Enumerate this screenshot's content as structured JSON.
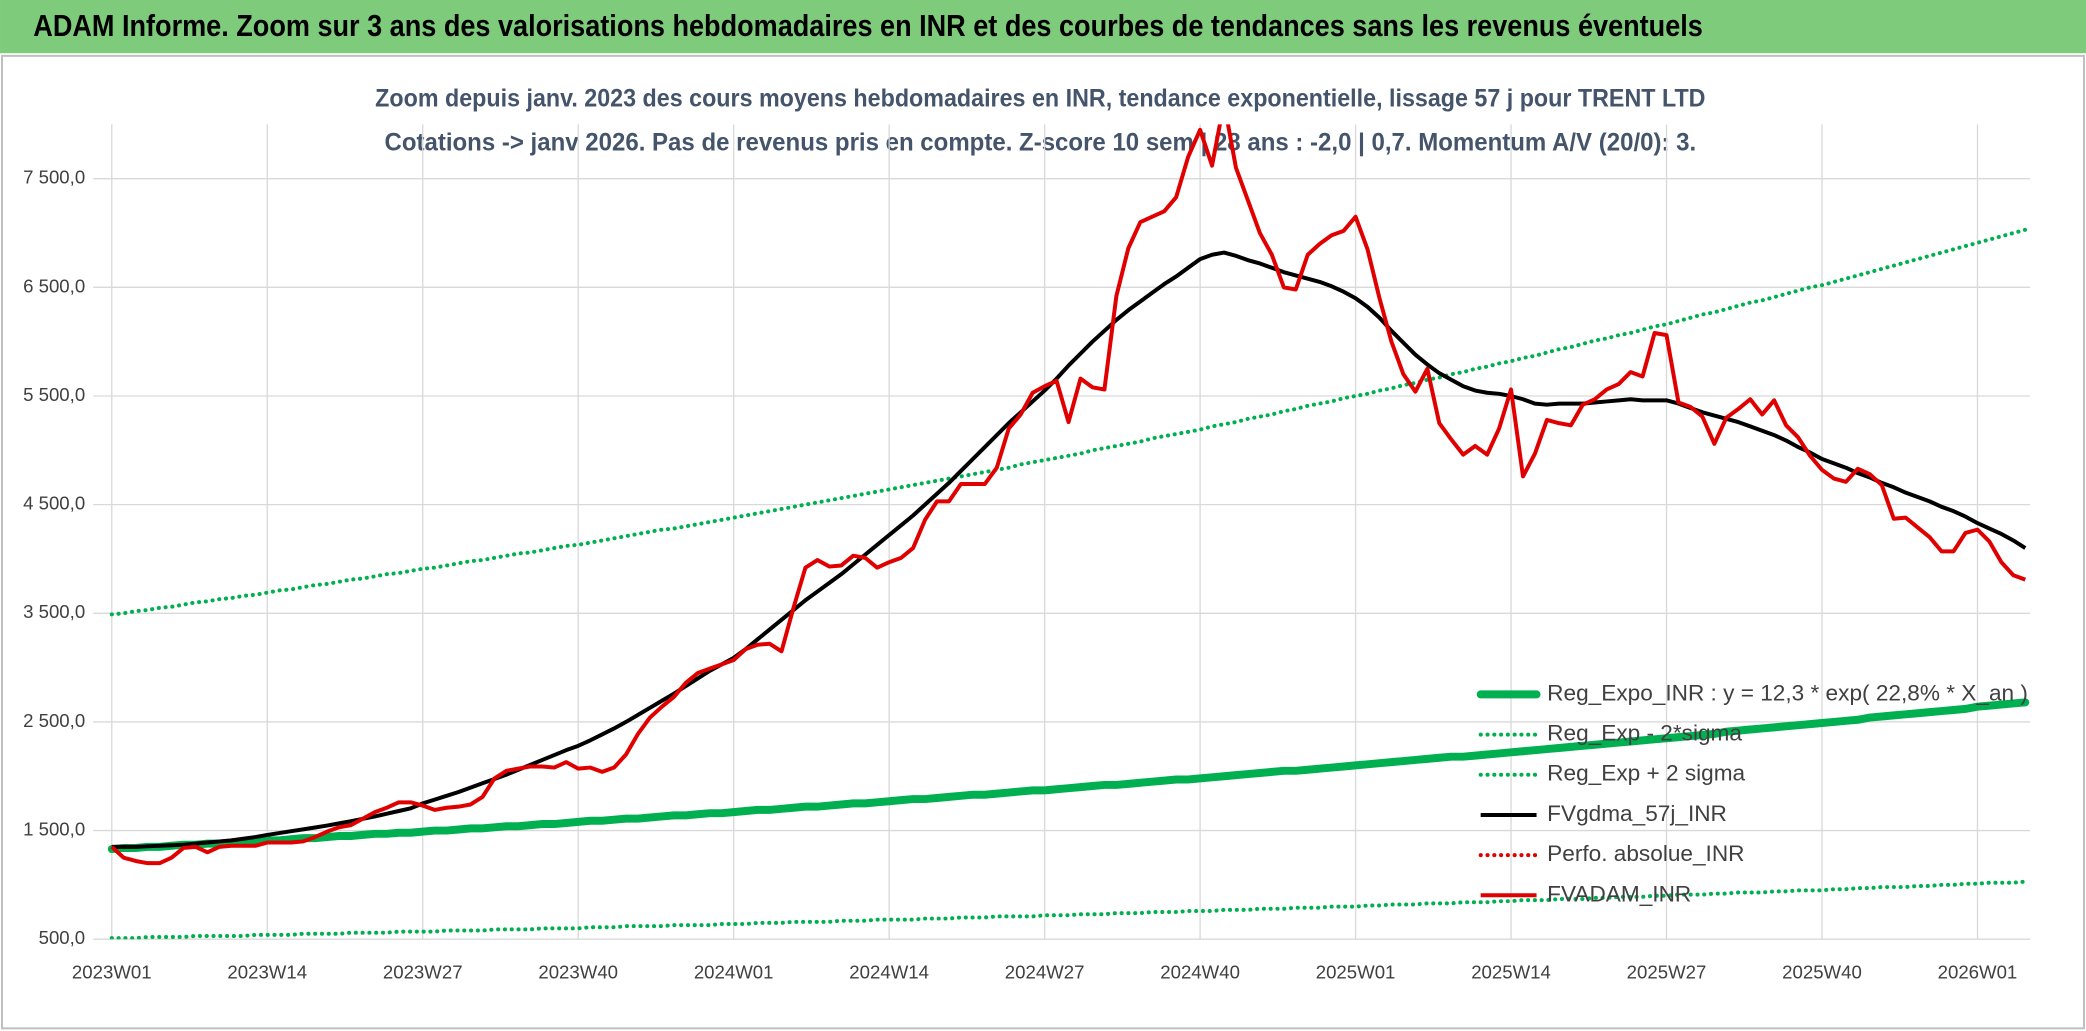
{
  "header": {
    "title": "ADAM Informe. Zoom sur 3 ans des valorisations hebdomadaires en INR et des courbes de tendances sans les revenus éventuels"
  },
  "chart_data": {
    "type": "line",
    "title": "Zoom depuis janv. 2023 des cours moyens hebdomadaires en INR, tendance exponentielle, lissage 57 j pour TRENT LTD",
    "subtitle": "Cotations -> janv 2026. Pas de revenus pris en compte. Z-score 10 sem | 28 ans : -2,0 | 0,7. Momentum A/V (20/0): 3.",
    "categories": [
      "2023W01",
      null,
      null,
      null,
      null,
      null,
      null,
      null,
      null,
      null,
      null,
      null,
      null,
      "2023W14",
      null,
      null,
      null,
      null,
      null,
      null,
      null,
      null,
      null,
      null,
      null,
      null,
      "2023W27",
      null,
      null,
      null,
      null,
      null,
      null,
      null,
      null,
      null,
      null,
      null,
      null,
      "2023W40",
      null,
      null,
      null,
      null,
      null,
      null,
      null,
      null,
      null,
      null,
      null,
      null,
      "2024W01",
      null,
      null,
      null,
      null,
      null,
      null,
      null,
      null,
      null,
      null,
      null,
      null,
      "2024W14",
      null,
      null,
      null,
      null,
      null,
      null,
      null,
      null,
      null,
      null,
      null,
      null,
      "2024W27",
      null,
      null,
      null,
      null,
      null,
      null,
      null,
      null,
      null,
      null,
      null,
      null,
      "2024W40",
      null,
      null,
      null,
      null,
      null,
      null,
      null,
      null,
      null,
      null,
      null,
      null,
      "2025W01",
      null,
      null,
      null,
      null,
      null,
      null,
      null,
      null,
      null,
      null,
      null,
      null,
      "2025W14",
      null,
      null,
      null,
      null,
      null,
      null,
      null,
      null,
      null,
      null,
      null,
      null,
      "2025W27",
      null,
      null,
      null,
      null,
      null,
      null,
      null,
      null,
      null,
      null,
      null,
      null,
      "2025W40",
      null,
      null,
      null,
      null,
      null,
      null,
      null,
      null,
      null,
      null,
      null,
      null,
      "2026W01",
      null,
      null,
      null,
      null
    ],
    "series": [
      {
        "name": "Reg_Expo_INR : y = 12,3 * exp( 22,8% * X_an )",
        "color": "#00b050",
        "style": "thick",
        "values": [
          1330,
          1340,
          1340,
          1350,
          1350,
          1360,
          1370,
          1370,
          1380,
          1380,
          1390,
          1400,
          1400,
          1410,
          1410,
          1420,
          1430,
          1430,
          1440,
          1450,
          1450,
          1460,
          1470,
          1470,
          1480,
          1480,
          1490,
          1500,
          1500,
          1510,
          1520,
          1520,
          1530,
          1540,
          1540,
          1550,
          1560,
          1560,
          1570,
          1580,
          1590,
          1590,
          1600,
          1610,
          1610,
          1620,
          1630,
          1640,
          1640,
          1650,
          1660,
          1660,
          1670,
          1680,
          1690,
          1690,
          1700,
          1710,
          1720,
          1720,
          1730,
          1740,
          1750,
          1750,
          1760,
          1770,
          1780,
          1790,
          1790,
          1800,
          1810,
          1820,
          1830,
          1830,
          1840,
          1850,
          1860,
          1870,
          1870,
          1880,
          1890,
          1900,
          1910,
          1920,
          1920,
          1930,
          1940,
          1950,
          1960,
          1970,
          1970,
          1980,
          1990,
          2000,
          2010,
          2020,
          2030,
          2040,
          2050,
          2050,
          2060,
          2070,
          2080,
          2090,
          2100,
          2110,
          2120,
          2130,
          2140,
          2150,
          2160,
          2170,
          2180,
          2180,
          2190,
          2200,
          2210,
          2220,
          2230,
          2240,
          2250,
          2260,
          2270,
          2280,
          2290,
          2300,
          2310,
          2320,
          2330,
          2340,
          2350,
          2360,
          2370,
          2380,
          2390,
          2410,
          2420,
          2430,
          2440,
          2450,
          2460,
          2470,
          2480,
          2490,
          2500,
          2510,
          2520,
          2540,
          2550,
          2560,
          2570,
          2580,
          2590,
          2600,
          2610,
          2620,
          2640,
          2650,
          2660,
          2670,
          2680
        ]
      },
      {
        "name": "Reg_Exp - 2*sigma",
        "color": "#00b050",
        "style": "dotted",
        "values": [
          510,
          510,
          510,
          520,
          520,
          520,
          520,
          530,
          530,
          530,
          530,
          530,
          540,
          540,
          540,
          540,
          550,
          550,
          550,
          550,
          560,
          560,
          560,
          560,
          570,
          570,
          570,
          570,
          580,
          580,
          580,
          580,
          590,
          590,
          590,
          590,
          600,
          600,
          600,
          600,
          610,
          610,
          610,
          620,
          620,
          620,
          620,
          630,
          630,
          630,
          630,
          640,
          640,
          640,
          650,
          650,
          650,
          660,
          660,
          660,
          660,
          670,
          670,
          670,
          680,
          680,
          680,
          680,
          690,
          690,
          690,
          700,
          700,
          700,
          710,
          710,
          710,
          710,
          720,
          720,
          720,
          730,
          730,
          730,
          740,
          740,
          740,
          750,
          750,
          750,
          760,
          760,
          760,
          770,
          770,
          770,
          780,
          780,
          780,
          790,
          790,
          790,
          800,
          800,
          800,
          810,
          810,
          820,
          820,
          820,
          830,
          830,
          830,
          840,
          840,
          840,
          850,
          850,
          860,
          860,
          860,
          870,
          870,
          870,
          880,
          880,
          890,
          890,
          890,
          900,
          900,
          910,
          910,
          910,
          920,
          920,
          930,
          930,
          930,
          940,
          940,
          950,
          950,
          950,
          960,
          960,
          970,
          970,
          980,
          980,
          980,
          990,
          990,
          1000,
          1000,
          1010,
          1010,
          1020,
          1020,
          1020,
          1030
        ]
      },
      {
        "name": "Reg_Exp + 2 sigma",
        "color": "#00b050",
        "style": "dotted",
        "values": [
          3490,
          3500,
          3520,
          3530,
          3550,
          3560,
          3580,
          3600,
          3610,
          3630,
          3640,
          3660,
          3670,
          3690,
          3710,
          3720,
          3740,
          3760,
          3770,
          3790,
          3810,
          3820,
          3840,
          3860,
          3870,
          3890,
          3910,
          3920,
          3940,
          3960,
          3980,
          3990,
          4010,
          4030,
          4050,
          4060,
          4080,
          4100,
          4120,
          4130,
          4150,
          4170,
          4190,
          4210,
          4230,
          4250,
          4270,
          4280,
          4300,
          4320,
          4340,
          4360,
          4380,
          4400,
          4420,
          4440,
          4460,
          4480,
          4500,
          4520,
          4540,
          4560,
          4580,
          4600,
          4620,
          4640,
          4660,
          4680,
          4700,
          4720,
          4740,
          4760,
          4780,
          4800,
          4820,
          4840,
          4870,
          4890,
          4910,
          4930,
          4950,
          4970,
          5000,
          5020,
          5040,
          5060,
          5080,
          5110,
          5130,
          5150,
          5170,
          5190,
          5220,
          5240,
          5260,
          5290,
          5310,
          5330,
          5360,
          5380,
          5410,
          5430,
          5450,
          5480,
          5500,
          5520,
          5550,
          5570,
          5600,
          5620,
          5650,
          5670,
          5700,
          5720,
          5750,
          5770,
          5800,
          5820,
          5850,
          5870,
          5900,
          5930,
          5950,
          5980,
          6010,
          6030,
          6060,
          6080,
          6110,
          6140,
          6160,
          6190,
          6220,
          6250,
          6270,
          6300,
          6330,
          6360,
          6380,
          6410,
          6440,
          6470,
          6500,
          6520,
          6550,
          6580,
          6610,
          6640,
          6670,
          6700,
          6730,
          6760,
          6790,
          6820,
          6850,
          6880,
          6910,
          6940,
          6970,
          7000,
          7030
        ]
      },
      {
        "name": "FVgdma_57j_INR",
        "color": "#000000",
        "style": "solid",
        "values": [
          1350,
          1350,
          1350,
          1355,
          1360,
          1365,
          1370,
          1380,
          1390,
          1400,
          1410,
          1425,
          1440,
          1460,
          1477,
          1494,
          1511,
          1528,
          1546,
          1566,
          1586,
          1608,
          1630,
          1655,
          1680,
          1705,
          1750,
          1785,
          1820,
          1855,
          1895,
          1935,
          1975,
          2015,
          2060,
          2105,
          2150,
          2195,
          2240,
          2280,
          2330,
          2385,
          2440,
          2500,
          2565,
          2630,
          2695,
          2760,
          2830,
          2900,
          2970,
          3030,
          3090,
          3170,
          3260,
          3350,
          3440,
          3530,
          3620,
          3700,
          3780,
          3860,
          3950,
          4040,
          4130,
          4220,
          4310,
          4400,
          4500,
          4600,
          4700,
          4810,
          4920,
          5030,
          5140,
          5250,
          5350,
          5450,
          5550,
          5660,
          5780,
          5890,
          6000,
          6100,
          6200,
          6290,
          6370,
          6450,
          6530,
          6600,
          6680,
          6760,
          6800,
          6820,
          6790,
          6750,
          6720,
          6680,
          6640,
          6610,
          6580,
          6550,
          6510,
          6460,
          6400,
          6320,
          6220,
          6100,
          5990,
          5880,
          5790,
          5710,
          5650,
          5590,
          5550,
          5530,
          5520,
          5500,
          5470,
          5430,
          5420,
          5430,
          5430,
          5430,
          5440,
          5450,
          5460,
          5470,
          5460,
          5460,
          5460,
          5430,
          5390,
          5350,
          5320,
          5290,
          5260,
          5220,
          5180,
          5140,
          5090,
          5030,
          4980,
          4920,
          4880,
          4840,
          4790,
          4750,
          4700,
          4660,
          4610,
          4570,
          4530,
          4480,
          4440,
          4390,
          4330,
          4280,
          4230,
          4170,
          4100
        ]
      },
      {
        "name": "Perfo. absolue_INR",
        "color": "#e00000",
        "style": "dotted",
        "values": [
          null,
          null,
          null,
          null,
          null,
          null,
          null,
          null,
          null,
          null,
          null,
          null,
          null,
          null,
          null,
          null,
          null,
          null,
          null,
          null,
          null,
          null,
          null,
          null,
          null,
          null,
          null,
          null,
          null,
          null,
          null,
          null,
          null,
          null,
          null,
          null,
          null,
          null,
          null,
          null,
          null,
          null,
          null,
          null,
          null,
          null,
          null,
          null,
          null,
          null,
          null,
          null,
          null,
          null,
          null,
          null,
          null,
          null,
          null,
          null,
          null,
          null,
          null,
          null,
          null,
          null,
          null,
          null,
          null,
          null,
          null,
          null,
          null,
          null,
          null,
          null,
          null,
          null,
          null,
          null,
          null,
          null,
          null,
          null,
          null,
          null,
          null,
          null,
          null,
          null,
          null,
          null,
          null,
          null,
          null,
          null,
          null,
          null,
          null,
          null,
          null,
          null,
          null,
          null,
          null,
          null,
          null,
          null,
          null,
          null,
          null,
          null,
          null,
          null,
          null,
          null,
          null,
          null,
          null,
          null,
          null,
          null,
          null,
          null,
          null,
          null,
          null,
          null,
          null,
          null,
          null,
          null,
          null,
          null,
          null,
          null,
          null,
          null,
          null,
          null,
          null,
          null,
          null,
          null,
          null,
          null,
          null,
          null,
          null,
          null,
          null,
          null,
          null,
          null,
          null,
          null,
          null,
          null,
          null,
          null,
          null
        ]
      },
      {
        "name": "FVADAM_INR",
        "color": "#e00000",
        "style": "solid",
        "values": [
          1350,
          1250,
          1220,
          1200,
          1200,
          1250,
          1340,
          1350,
          1300,
          1350,
          1360,
          1360,
          1360,
          1390,
          1390,
          1390,
          1400,
          1440,
          1490,
          1530,
          1550,
          1610,
          1670,
          1710,
          1760,
          1760,
          1730,
          1690,
          1710,
          1720,
          1740,
          1810,
          1980,
          2050,
          2070,
          2090,
          2090,
          2080,
          2130,
          2070,
          2080,
          2040,
          2080,
          2200,
          2390,
          2540,
          2640,
          2730,
          2860,
          2950,
          2990,
          3030,
          3070,
          3170,
          3210,
          3220,
          3150,
          3550,
          3920,
          3990,
          3930,
          3940,
          4030,
          4010,
          3920,
          3970,
          4010,
          4100,
          4360,
          4530,
          4530,
          4690,
          4690,
          4690,
          4840,
          5200,
          5330,
          5530,
          5590,
          5640,
          5260,
          5660,
          5580,
          5560,
          6420,
          6860,
          7100,
          7150,
          7200,
          7330,
          7700,
          7950,
          7620,
          8200,
          7600,
          7300,
          7000,
          6800,
          6500,
          6480,
          6800,
          6900,
          6980,
          7020,
          7150,
          6850,
          6400,
          6000,
          5700,
          5540,
          5750,
          5250,
          5100,
          4960,
          5040,
          4960,
          5200,
          5560,
          4760,
          4970,
          5280,
          5250,
          5230,
          5420,
          5470,
          5560,
          5610,
          5720,
          5680,
          6080,
          6060,
          5440,
          5400,
          5310,
          5060,
          5300,
          5380,
          5470,
          5330,
          5460,
          5230,
          5120,
          4950,
          4820,
          4740,
          4710,
          4830,
          4780,
          4680,
          4370,
          4380,
          4290,
          4200,
          4070,
          4070,
          4240,
          4270,
          4160,
          3970,
          3850,
          3810
        ]
      }
    ],
    "ylim": [
      500,
      8000
    ],
    "yticks": [
      {
        "value": 500,
        "label": "500,0"
      },
      {
        "value": 1500,
        "label": "1 500,0"
      },
      {
        "value": 2500,
        "label": "2 500,0"
      },
      {
        "value": 3500,
        "label": "3 500,0"
      },
      {
        "value": 4500,
        "label": "4 500,0"
      },
      {
        "value": 5500,
        "label": "5 500,0"
      },
      {
        "value": 6500,
        "label": "6 500,0"
      },
      {
        "value": 7500,
        "label": "7 500,0"
      }
    ],
    "grid": true,
    "legend": "lower right"
  }
}
